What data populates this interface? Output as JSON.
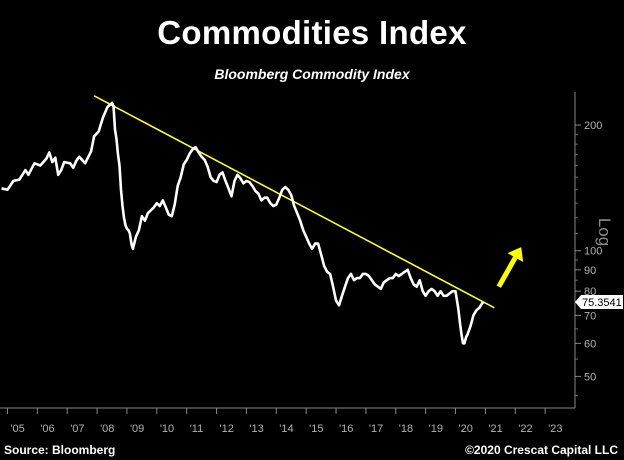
{
  "header": {
    "title": "Commodities Index",
    "subtitle": "Bloomberg Commodity Index"
  },
  "footer": {
    "source": "Source: Bloomberg",
    "copyright": "©2020 Crescat Capital LLC"
  },
  "chart_data": {
    "type": "line",
    "title": "Commodities Index",
    "subtitle": "Bloomberg Commodity Index",
    "ylabel": "Log",
    "yscale": "log",
    "ylim": [
      42,
      240
    ],
    "xlim": [
      2004.75,
      2024.0
    ],
    "yticks": [
      50,
      60,
      70,
      80,
      90,
      100,
      200
    ],
    "xtick_labels": [
      "'05",
      "'06",
      "'07",
      "'08",
      "'09",
      "'10",
      "'11",
      "'12",
      "'13",
      "'14",
      "'15",
      "'16",
      "'17",
      "'18",
      "'19",
      "'20",
      "'21",
      "'22",
      "'23"
    ],
    "xtick_years": [
      2005,
      2006,
      2007,
      2008,
      2009,
      2010,
      2011,
      2012,
      2013,
      2014,
      2015,
      2016,
      2017,
      2018,
      2019,
      2020,
      2021,
      2022,
      2023
    ],
    "last_value_label": "75.3541",
    "series": [
      {
        "color": "#ffffff",
        "points": [
          [
            2004.8,
            141
          ],
          [
            2005.0,
            140
          ],
          [
            2005.2,
            147
          ],
          [
            2005.4,
            148
          ],
          [
            2005.6,
            156
          ],
          [
            2005.7,
            152
          ],
          [
            2005.9,
            162
          ],
          [
            2006.1,
            160
          ],
          [
            2006.3,
            166
          ],
          [
            2006.4,
            172
          ],
          [
            2006.5,
            163
          ],
          [
            2006.6,
            167
          ],
          [
            2006.7,
            152
          ],
          [
            2006.8,
            156
          ],
          [
            2006.9,
            163
          ],
          [
            2007.1,
            162
          ],
          [
            2007.2,
            158
          ],
          [
            2007.3,
            164
          ],
          [
            2007.4,
            168
          ],
          [
            2007.6,
            162
          ],
          [
            2007.8,
            173
          ],
          [
            2007.9,
            188
          ],
          [
            2008.05,
            193
          ],
          [
            2008.2,
            209
          ],
          [
            2008.35,
            221
          ],
          [
            2008.5,
            226
          ],
          [
            2008.55,
            222
          ],
          [
            2008.6,
            195
          ],
          [
            2008.65,
            185
          ],
          [
            2008.7,
            170
          ],
          [
            2008.75,
            160
          ],
          [
            2008.8,
            140
          ],
          [
            2008.85,
            128
          ],
          [
            2008.9,
            120
          ],
          [
            2008.95,
            115
          ],
          [
            2009.0,
            113
          ],
          [
            2009.05,
            112
          ],
          [
            2009.1,
            110
          ],
          [
            2009.15,
            104
          ],
          [
            2009.2,
            101
          ],
          [
            2009.3,
            108
          ],
          [
            2009.4,
            112
          ],
          [
            2009.5,
            121
          ],
          [
            2009.6,
            118
          ],
          [
            2009.7,
            123
          ],
          [
            2009.8,
            125
          ],
          [
            2009.9,
            127
          ],
          [
            2010.0,
            130
          ],
          [
            2010.1,
            128
          ],
          [
            2010.2,
            132
          ],
          [
            2010.3,
            127
          ],
          [
            2010.4,
            122
          ],
          [
            2010.5,
            121
          ],
          [
            2010.6,
            129
          ],
          [
            2010.7,
            143
          ],
          [
            2010.8,
            150
          ],
          [
            2010.9,
            161
          ],
          [
            2011.0,
            165
          ],
          [
            2011.1,
            171
          ],
          [
            2011.2,
            175
          ],
          [
            2011.3,
            177
          ],
          [
            2011.4,
            172
          ],
          [
            2011.5,
            168
          ],
          [
            2011.6,
            165
          ],
          [
            2011.7,
            159
          ],
          [
            2011.8,
            150
          ],
          [
            2011.9,
            147
          ],
          [
            2012.0,
            146
          ],
          [
            2012.1,
            152
          ],
          [
            2012.2,
            154
          ],
          [
            2012.3,
            147
          ],
          [
            2012.4,
            141
          ],
          [
            2012.5,
            135
          ],
          [
            2012.6,
            147
          ],
          [
            2012.7,
            152
          ],
          [
            2012.8,
            149
          ],
          [
            2012.9,
            145
          ],
          [
            2013.0,
            147
          ],
          [
            2013.1,
            146
          ],
          [
            2013.2,
            143
          ],
          [
            2013.3,
            139
          ],
          [
            2013.4,
            137
          ],
          [
            2013.5,
            132
          ],
          [
            2013.6,
            134
          ],
          [
            2013.7,
            134
          ],
          [
            2013.8,
            130
          ],
          [
            2013.9,
            128
          ],
          [
            2014.0,
            129
          ],
          [
            2014.1,
            134
          ],
          [
            2014.2,
            140
          ],
          [
            2014.3,
            142
          ],
          [
            2014.4,
            140
          ],
          [
            2014.5,
            136
          ],
          [
            2014.6,
            128
          ],
          [
            2014.7,
            123
          ],
          [
            2014.8,
            118
          ],
          [
            2014.9,
            112
          ],
          [
            2015.0,
            108
          ],
          [
            2015.1,
            104
          ],
          [
            2015.2,
            101
          ],
          [
            2015.3,
            104
          ],
          [
            2015.4,
            104
          ],
          [
            2015.5,
            98
          ],
          [
            2015.6,
            92
          ],
          [
            2015.7,
            89
          ],
          [
            2015.8,
            88
          ],
          [
            2015.9,
            82
          ],
          [
            2016.0,
            76
          ],
          [
            2016.1,
            74
          ],
          [
            2016.2,
            78
          ],
          [
            2016.3,
            82
          ],
          [
            2016.4,
            86
          ],
          [
            2016.5,
            88
          ],
          [
            2016.6,
            85
          ],
          [
            2016.7,
            86
          ],
          [
            2016.8,
            86
          ],
          [
            2016.9,
            88
          ],
          [
            2017.0,
            88
          ],
          [
            2017.1,
            87
          ],
          [
            2017.2,
            85
          ],
          [
            2017.3,
            83
          ],
          [
            2017.4,
            82
          ],
          [
            2017.5,
            81
          ],
          [
            2017.6,
            84
          ],
          [
            2017.7,
            85
          ],
          [
            2017.8,
            86
          ],
          [
            2017.9,
            86
          ],
          [
            2018.0,
            88
          ],
          [
            2018.1,
            87
          ],
          [
            2018.2,
            88
          ],
          [
            2018.3,
            89
          ],
          [
            2018.4,
            90
          ],
          [
            2018.5,
            86
          ],
          [
            2018.6,
            83
          ],
          [
            2018.7,
            82
          ],
          [
            2018.8,
            85
          ],
          [
            2018.9,
            80
          ],
          [
            2019.0,
            78
          ],
          [
            2019.1,
            80
          ],
          [
            2019.2,
            81
          ],
          [
            2019.3,
            80
          ],
          [
            2019.4,
            78
          ],
          [
            2019.5,
            80
          ],
          [
            2019.6,
            78
          ],
          [
            2019.7,
            78
          ],
          [
            2019.8,
            79
          ],
          [
            2019.9,
            80
          ],
          [
            2020.0,
            80
          ],
          [
            2020.05,
            76
          ],
          [
            2020.1,
            72
          ],
          [
            2020.15,
            67
          ],
          [
            2020.2,
            63
          ],
          [
            2020.25,
            60
          ],
          [
            2020.3,
            60
          ],
          [
            2020.35,
            62
          ],
          [
            2020.4,
            63
          ],
          [
            2020.5,
            66
          ],
          [
            2020.6,
            70
          ],
          [
            2020.7,
            72
          ],
          [
            2020.8,
            73
          ],
          [
            2020.9,
            75
          ],
          [
            2020.95,
            75.35
          ]
        ]
      },
      {
        "name": "Trendline",
        "color": "#ffff33",
        "points": [
          [
            2007.9,
            235
          ],
          [
            2021.3,
            73
          ]
        ]
      }
    ],
    "arrow": {
      "color": "#ffff00",
      "from": [
        2021.45,
        82
      ],
      "to": [
        2022.2,
        102
      ]
    }
  }
}
